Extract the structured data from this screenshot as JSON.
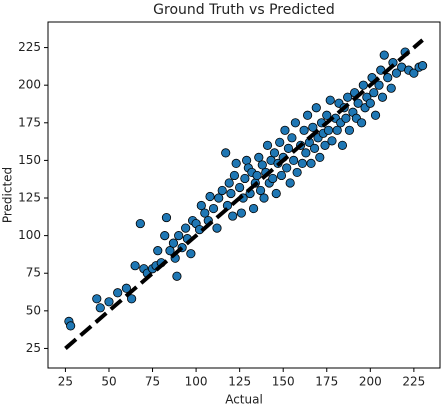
{
  "chart_data": {
    "type": "scatter",
    "title": "Ground Truth vs Predicted",
    "x_label": "Actual",
    "y_label": "Predicted",
    "xlim": [
      15,
      240
    ],
    "ylim": [
      12,
      242
    ],
    "xticks": [
      25,
      50,
      75,
      100,
      125,
      150,
      175,
      200,
      225
    ],
    "yticks": [
      25,
      50,
      75,
      100,
      125,
      150,
      175,
      200,
      225
    ],
    "series": [
      {
        "color": "#1f77b4",
        "edgecolor": "#000000",
        "x": [
          27,
          28,
          43,
          45,
          50,
          55,
          60,
          63,
          65,
          68,
          70,
          72,
          75,
          77,
          78,
          80,
          82,
          83,
          85,
          87,
          88,
          89,
          90,
          92,
          94,
          95,
          97,
          98,
          100,
          102,
          103,
          105,
          107,
          108,
          110,
          112,
          113,
          115,
          117,
          118,
          119,
          120,
          121,
          122,
          123,
          125,
          126,
          127,
          128,
          129,
          130,
          131,
          132,
          133,
          134,
          135,
          136,
          137,
          138,
          139,
          140,
          141,
          142,
          143,
          144,
          145,
          146,
          147,
          148,
          149,
          150,
          151,
          152,
          153,
          154,
          155,
          156,
          157,
          158,
          160,
          161,
          162,
          163,
          164,
          165,
          166,
          167,
          168,
          169,
          170,
          171,
          172,
          173,
          174,
          175,
          176,
          177,
          178,
          180,
          181,
          182,
          183,
          184,
          185,
          186,
          187,
          188,
          190,
          191,
          192,
          193,
          195,
          196,
          197,
          198,
          200,
          201,
          202,
          203,
          205,
          206,
          207,
          208,
          210,
          212,
          213,
          215,
          218,
          220,
          222,
          225,
          228,
          230
        ],
        "values": [
          43,
          40,
          58,
          52,
          56,
          62,
          65,
          58,
          80,
          108,
          78,
          75,
          78,
          80,
          90,
          82,
          100,
          112,
          90,
          95,
          85,
          73,
          100,
          92,
          105,
          98,
          88,
          110,
          108,
          104,
          120,
          115,
          110,
          126,
          118,
          105,
          125,
          130,
          155,
          120,
          135,
          128,
          113,
          140,
          148,
          132,
          115,
          125,
          138,
          150,
          145,
          128,
          142,
          118,
          135,
          140,
          152,
          130,
          147,
          125,
          142,
          160,
          135,
          150,
          138,
          155,
          128,
          148,
          162,
          140,
          152,
          170,
          145,
          158,
          135,
          165,
          150,
          175,
          142,
          160,
          148,
          170,
          155,
          180,
          162,
          148,
          172,
          158,
          185,
          165,
          152,
          175,
          168,
          160,
          180,
          170,
          190,
          163,
          178,
          170,
          188,
          175,
          160,
          185,
          178,
          192,
          170,
          182,
          195,
          178,
          188,
          175,
          200,
          185,
          192,
          188,
          205,
          195,
          180,
          200,
          210,
          192,
          220,
          205,
          198,
          215,
          208,
          212,
          222,
          210,
          208,
          212,
          213
        ]
      }
    ],
    "reference_line": {
      "x": [
        25,
        230
      ],
      "values": [
        25,
        230
      ],
      "color": "#000000",
      "dashed": true
    }
  }
}
